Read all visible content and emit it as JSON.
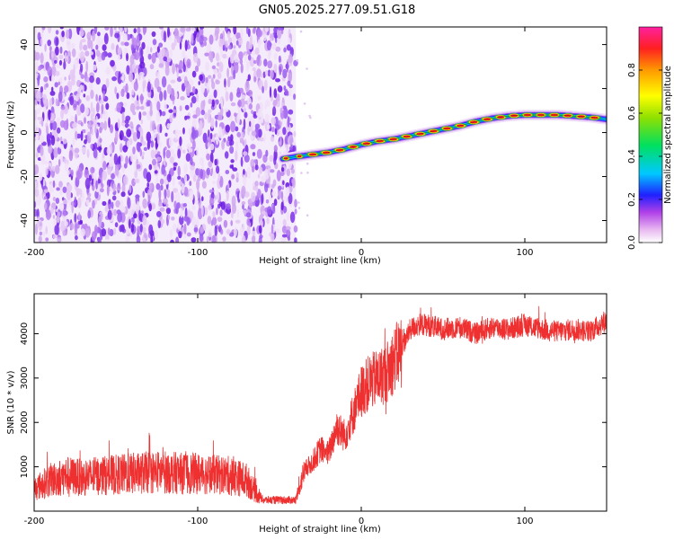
{
  "title": "GN05.2025.277.09.51.G18",
  "chart_data": [
    {
      "type": "heatmap",
      "name": "spectrogram",
      "xlabel": "Height of straight line (km)",
      "ylabel": "Frequency (Hz)",
      "xlim": [
        -200,
        150
      ],
      "ylim": [
        -50,
        48
      ],
      "x_ticks": [
        -200,
        -100,
        0,
        100
      ],
      "y_ticks": [
        -40,
        -20,
        0,
        20,
        40
      ],
      "noise_region_x": [
        -200,
        -40
      ],
      "signal_track": {
        "x": [
          -48,
          -40,
          -30,
          -20,
          -10,
          0,
          10,
          20,
          30,
          40,
          50,
          60,
          70,
          80,
          90,
          100,
          110,
          120,
          130,
          140,
          150
        ],
        "y": [
          -12,
          -11,
          -10,
          -9,
          -7.5,
          -5.5,
          -4,
          -3,
          -1.5,
          0,
          1.5,
          3,
          5,
          6.5,
          7.5,
          8,
          8,
          8,
          7.5,
          7,
          6
        ]
      },
      "colorbar": {
        "label": "Normalized spectral amplitude",
        "range": [
          0.0,
          1.0
        ],
        "ticks": [
          0.0,
          0.2,
          0.4,
          0.6,
          0.8
        ],
        "tick_labels": [
          "0.0",
          "0.2",
          "0.4",
          "0.6",
          "0.8"
        ]
      }
    },
    {
      "type": "line",
      "name": "snr",
      "xlabel": "Height of straight line (km)",
      "ylabel": "SNR (10 * v/v)",
      "xlim": [
        -200,
        150
      ],
      "ylim": [
        0,
        4900
      ],
      "x_ticks": [
        -200,
        -100,
        0,
        100
      ],
      "y_ticks": [
        1000,
        2000,
        3000,
        4000
      ],
      "color": "#ee3030",
      "series": [
        {
          "name": "SNR",
          "x": [
            -200,
            -190,
            -180,
            -170,
            -160,
            -150,
            -140,
            -130,
            -120,
            -110,
            -100,
            -90,
            -80,
            -70,
            -65,
            -60,
            -50,
            -40,
            -35,
            -30,
            -25,
            -20,
            -15,
            -10,
            -5,
            0,
            5,
            10,
            15,
            20,
            25,
            30,
            35,
            40,
            50,
            60,
            70,
            80,
            90,
            100,
            110,
            120,
            130,
            140,
            150
          ],
          "values": [
            500,
            700,
            800,
            750,
            800,
            820,
            850,
            870,
            880,
            850,
            850,
            820,
            800,
            700,
            450,
            250,
            250,
            250,
            900,
            1100,
            1400,
            1300,
            1900,
            1700,
            2200,
            2700,
            2900,
            3000,
            3100,
            3400,
            3700,
            4100,
            4200,
            4200,
            4100,
            4150,
            4000,
            4150,
            4100,
            4200,
            4100,
            4050,
            4100,
            4050,
            4300
          ]
        }
      ]
    }
  ]
}
